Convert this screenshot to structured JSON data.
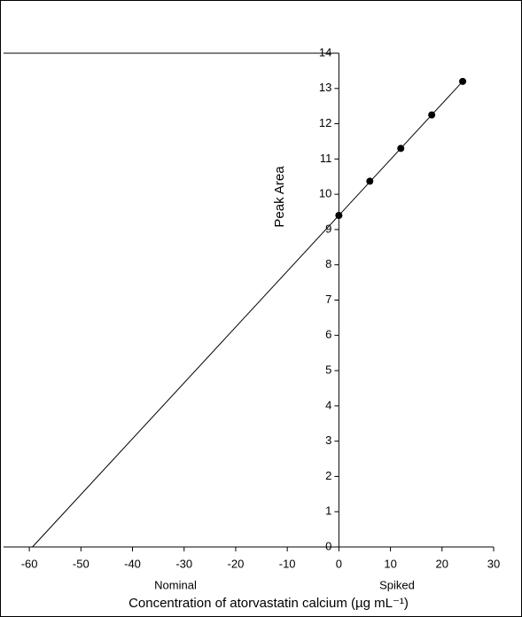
{
  "chart_data": {
    "type": "scatter",
    "ylabel": "Peak Area",
    "xlabel": "Concentration of atorvastatin calcium (µg mL⁻¹)",
    "annotations": [
      "Nominal",
      "Spiked"
    ],
    "x": [
      0,
      6,
      12,
      18,
      24
    ],
    "values": [
      9.4,
      10.37,
      11.3,
      12.25,
      13.2
    ],
    "color": "#000000",
    "fit_line": {
      "x": [
        -59.4,
        24
      ],
      "values": [
        0,
        13.2
      ]
    },
    "xlim": [
      -65,
      30
    ],
    "xticks": [
      -60,
      -50,
      -40,
      -30,
      -20,
      -10,
      0,
      10,
      20,
      30
    ],
    "ylim": [
      0,
      14
    ],
    "yticks": [
      0,
      1,
      2,
      3,
      4,
      5,
      6,
      7,
      8,
      9,
      10,
      11,
      12,
      13,
      14
    ],
    "grid": false
  }
}
